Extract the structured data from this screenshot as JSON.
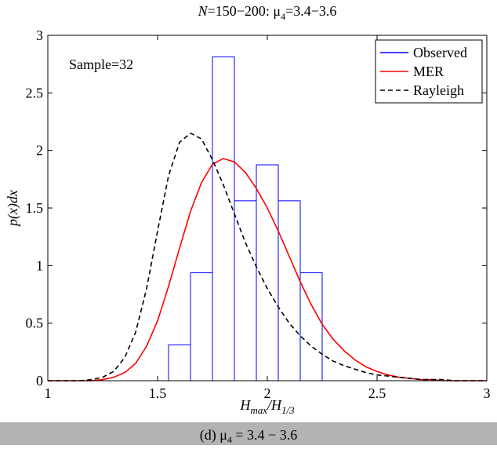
{
  "chart_data": {
    "type": "histogram",
    "title": [
      "N",
      "=150−200: μ",
      "4",
      "=3.4−3.6"
    ],
    "xlabel": [
      "H",
      "max",
      "/H",
      "1/3"
    ],
    "ylabel": "p(x)dx",
    "annotation": "Sample=32",
    "caption": [
      "(d) μ",
      "4",
      " = 3.4 − 3.6"
    ],
    "name": "Observed",
    "color": "#0000ff",
    "bins": [
      1.55,
      1.65,
      1.75,
      1.85,
      1.95,
      2.05,
      2.15,
      2.25
    ],
    "values": [
      0.3125,
      0.9375,
      2.8125,
      1.5625,
      1.875,
      1.5625,
      0.9375
    ],
    "lines": {
      "type": "line",
      "x": [
        1.0,
        1.05,
        1.1,
        1.15,
        1.2,
        1.25,
        1.3,
        1.35,
        1.4,
        1.45,
        1.5,
        1.55,
        1.6,
        1.65,
        1.7,
        1.75,
        1.8,
        1.85,
        1.9,
        1.95,
        2.0,
        2.05,
        2.1,
        2.15,
        2.2,
        2.25,
        2.3,
        2.35,
        2.4,
        2.45,
        2.5,
        2.55,
        2.6,
        2.65,
        2.7,
        2.75,
        2.8,
        2.85,
        2.9,
        2.95,
        3.0
      ],
      "series": [
        {
          "name": "MER",
          "color": "#ff0000",
          "dash": false,
          "values": [
            0,
            0,
            0,
            0,
            0,
            0.01,
            0.03,
            0.07,
            0.15,
            0.3,
            0.52,
            0.82,
            1.15,
            1.47,
            1.72,
            1.88,
            1.93,
            1.9,
            1.81,
            1.67,
            1.5,
            1.3,
            1.08,
            0.86,
            0.66,
            0.49,
            0.36,
            0.26,
            0.18,
            0.12,
            0.08,
            0.05,
            0.03,
            0.02,
            0.01,
            0.01,
            0,
            0,
            0,
            0,
            0
          ]
        },
        {
          "name": "Rayleigh",
          "color": "#000000",
          "dash": true,
          "values": [
            0,
            0,
            0,
            0,
            0.01,
            0.03,
            0.08,
            0.2,
            0.42,
            0.8,
            1.3,
            1.78,
            2.07,
            2.15,
            2.1,
            1.92,
            1.7,
            1.45,
            1.2,
            0.99,
            0.8,
            0.64,
            0.5,
            0.39,
            0.3,
            0.23,
            0.17,
            0.13,
            0.1,
            0.07,
            0.05,
            0.04,
            0.03,
            0.02,
            0.01,
            0.01,
            0.01,
            0,
            0,
            0,
            0
          ]
        }
      ]
    },
    "xlim": [
      1,
      3
    ],
    "xticks": [
      1,
      1.5,
      2,
      2.5,
      3
    ],
    "ylim": [
      0,
      3
    ],
    "yticks": [
      0,
      0.5,
      1,
      1.5,
      2,
      2.5,
      3
    ],
    "grid": false,
    "legend": "northeast"
  }
}
